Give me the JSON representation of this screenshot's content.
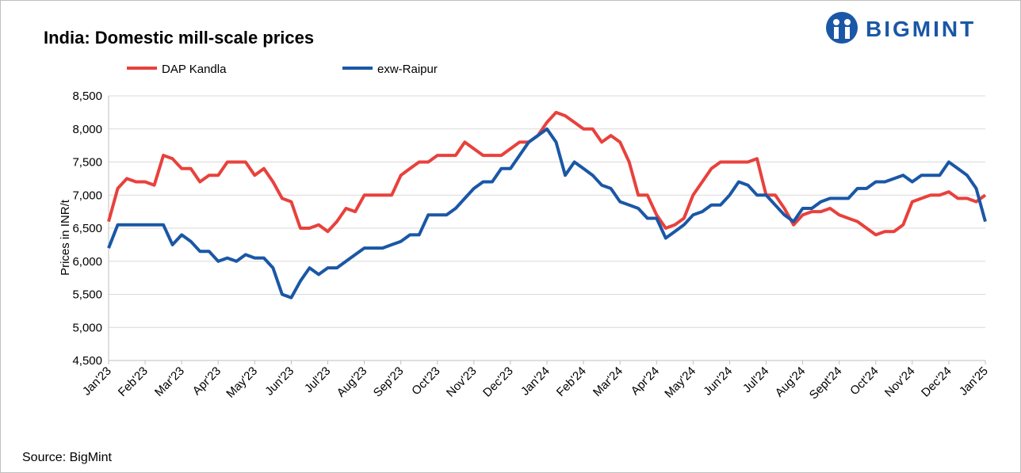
{
  "chart_data": {
    "type": "line",
    "title": "India: Domestic mill-scale prices",
    "logo": "BIGMINT",
    "source": "Source: BigMint",
    "y_label": "Prices in INR/t",
    "categories": [
      "Jan'23",
      null,
      null,
      null,
      "Feb'23",
      null,
      null,
      null,
      "Mar'23",
      null,
      null,
      null,
      "Apr'23",
      null,
      null,
      null,
      "May'23",
      null,
      null,
      null,
      "Jun'23",
      null,
      null,
      null,
      "Jul'23",
      null,
      null,
      null,
      "Aug'23",
      null,
      null,
      null,
      "Sep'23",
      null,
      null,
      null,
      "Oct'23",
      null,
      null,
      null,
      "Nov'23",
      null,
      null,
      null,
      "Dec'23",
      null,
      null,
      null,
      "Jan'24",
      null,
      null,
      null,
      "Feb'24",
      null,
      null,
      null,
      "Mar'24",
      null,
      null,
      null,
      "Apr'24",
      null,
      null,
      null,
      "May'24",
      null,
      null,
      null,
      "Jun'24",
      null,
      null,
      null,
      "Jul'24",
      null,
      null,
      null,
      "Aug'24",
      null,
      null,
      null,
      "Sept'24",
      null,
      null,
      null,
      "Oct'24",
      null,
      null,
      null,
      "Nov'24",
      null,
      null,
      null,
      "Dec'24",
      null,
      null,
      null,
      "Jan'25"
    ],
    "series": [
      {
        "name": "DAP Kandla",
        "color": "#e8413c",
        "values": [
          6600,
          7100,
          7250,
          7200,
          7200,
          7150,
          7600,
          7550,
          7400,
          7400,
          7200,
          7300,
          7300,
          7500,
          7500,
          7500,
          7300,
          7400,
          7200,
          6950,
          6900,
          6500,
          6500,
          6550,
          6450,
          6600,
          6800,
          6750,
          7000,
          7000,
          7000,
          7000,
          7300,
          7400,
          7500,
          7500,
          7600,
          7600,
          7600,
          7800,
          7700,
          7600,
          7600,
          7600,
          7700,
          7800,
          7800,
          7900,
          8100,
          8250,
          8200,
          8100,
          8000,
          8000,
          7800,
          7900,
          7800,
          7500,
          7000,
          7000,
          6700,
          6500,
          6550,
          6650,
          7000,
          7200,
          7400,
          7500,
          7500,
          7500,
          7500,
          7550,
          7000,
          7000,
          6800,
          6550,
          6700,
          6750,
          6750,
          6800,
          6700,
          6650,
          6600,
          6500,
          6400,
          6450,
          6450,
          6550,
          6900,
          6950,
          7000,
          7000,
          7050,
          6950,
          6950,
          6900,
          7000
        ]
      },
      {
        "name": "exw-Raipur",
        "color": "#1a57a6",
        "values": [
          6200,
          6550,
          6550,
          6550,
          6550,
          6550,
          6550,
          6250,
          6400,
          6300,
          6150,
          6150,
          6000,
          6050,
          6000,
          6100,
          6050,
          6050,
          5900,
          5500,
          5450,
          5700,
          5900,
          5800,
          5900,
          5900,
          6000,
          6100,
          6200,
          6200,
          6200,
          6250,
          6300,
          6400,
          6400,
          6700,
          6700,
          6700,
          6800,
          6950,
          7100,
          7200,
          7200,
          7400,
          7400,
          7600,
          7800,
          7900,
          8000,
          7800,
          7300,
          7500,
          7400,
          7300,
          7150,
          7100,
          6900,
          6850,
          6800,
          6650,
          6650,
          6350,
          6450,
          6550,
          6700,
          6750,
          6850,
          6850,
          7000,
          7200,
          7150,
          7000,
          7000,
          6850,
          6700,
          6600,
          6800,
          6800,
          6900,
          6950,
          6950,
          6950,
          7100,
          7100,
          7200,
          7200,
          7250,
          7300,
          7200,
          7300,
          7300,
          7300,
          7500,
          7400,
          7300,
          7100,
          6600
        ]
      }
    ],
    "ylim": [
      4500,
      8500
    ],
    "yticks": [
      {
        "value": 4500,
        "label": "4,500"
      },
      {
        "value": 5000,
        "label": "5,000"
      },
      {
        "value": 5500,
        "label": "5,500"
      },
      {
        "value": 6000,
        "label": "6,000"
      },
      {
        "value": 6500,
        "label": "6,500"
      },
      {
        "value": 7000,
        "label": "7,000"
      },
      {
        "value": 7500,
        "label": "7,500"
      },
      {
        "value": 8000,
        "label": "8,000"
      },
      {
        "value": 8500,
        "label": "8,500"
      }
    ],
    "grid": true
  }
}
